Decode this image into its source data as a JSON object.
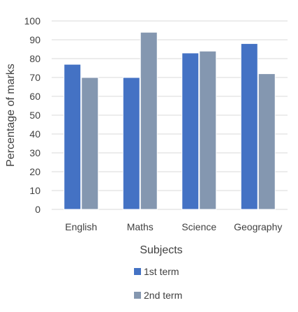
{
  "chart_data": {
    "type": "bar",
    "categories": [
      "English",
      "Maths",
      "Science",
      "Geography"
    ],
    "series": [
      {
        "name": "1st term",
        "values": [
          77,
          70,
          83,
          88
        ],
        "color": "#4472C4"
      },
      {
        "name": "2nd term",
        "values": [
          70,
          94,
          84,
          72
        ],
        "color": "#8497B0"
      }
    ],
    "xlabel": "Subjects",
    "ylabel": "Percentage of marks",
    "ylim": [
      0,
      100
    ],
    "yticks": [
      0,
      10,
      20,
      30,
      40,
      50,
      60,
      70,
      80,
      90,
      100
    ],
    "grid": true,
    "legend_position": "bottom"
  }
}
